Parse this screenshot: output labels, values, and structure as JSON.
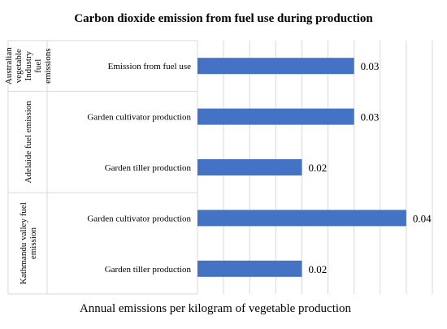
{
  "chart_data": {
    "type": "bar",
    "orientation": "horizontal",
    "title": "Carbon dioxide emission  from  fuel use during production",
    "xlabel": "Annual emissions per kilogram of vegetable production",
    "xlim": [
      0,
      0.045
    ],
    "grid": true,
    "groups": [
      {
        "label_lines": [
          "Australian",
          "vegetable",
          "Industry",
          "fuel",
          "emissions"
        ],
        "categories": [
          "Emission from fuel use"
        ],
        "values": [
          0.03
        ],
        "value_labels": [
          "0.03"
        ]
      },
      {
        "label_lines": [
          "Adelaide fuel emission"
        ],
        "categories": [
          "Garden cultivator production",
          "Garden tiller production"
        ],
        "values": [
          0.03,
          0.02
        ],
        "value_labels": [
          "0.03",
          "0.02"
        ]
      },
      {
        "label_lines": [
          "Kathmandu valley fuel",
          "emission"
        ],
        "categories": [
          "Garden cultivator production",
          "Garden tiller production"
        ],
        "values": [
          0.04,
          0.02
        ],
        "value_labels": [
          "0.04",
          "0.02"
        ]
      }
    ],
    "bar_color": "#4472c4"
  }
}
